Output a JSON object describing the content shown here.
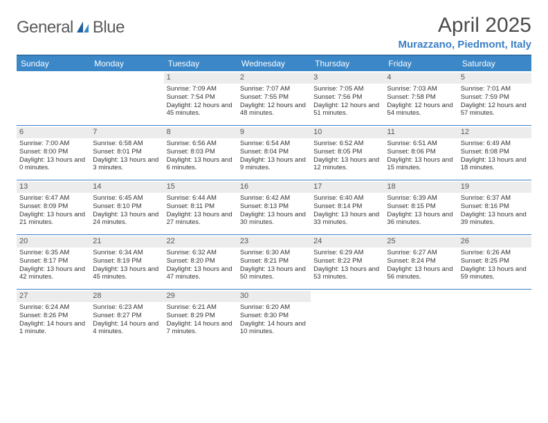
{
  "logo": {
    "text1": "General",
    "text2": "Blue"
  },
  "title": "April 2025",
  "location": "Murazzano, Piedmont, Italy",
  "colors": {
    "header_bg": "#3b87c8",
    "header_border_top": "#2f6fa3",
    "week_divider": "#3b7fc4",
    "daynum_bg": "#ececec",
    "text": "#333333",
    "logo_gray": "#5a5a5a",
    "logo_blue": "#3b7fc4"
  },
  "fonts": {
    "body_pt": 9.5,
    "header_pt": 12,
    "title_pt": 30,
    "location_pt": 15
  },
  "day_headers": [
    "Sunday",
    "Monday",
    "Tuesday",
    "Wednesday",
    "Thursday",
    "Friday",
    "Saturday"
  ],
  "weeks": [
    [
      null,
      null,
      {
        "n": "1",
        "sr": "Sunrise: 7:09 AM",
        "ss": "Sunset: 7:54 PM",
        "dl": "Daylight: 12 hours and 45 minutes."
      },
      {
        "n": "2",
        "sr": "Sunrise: 7:07 AM",
        "ss": "Sunset: 7:55 PM",
        "dl": "Daylight: 12 hours and 48 minutes."
      },
      {
        "n": "3",
        "sr": "Sunrise: 7:05 AM",
        "ss": "Sunset: 7:56 PM",
        "dl": "Daylight: 12 hours and 51 minutes."
      },
      {
        "n": "4",
        "sr": "Sunrise: 7:03 AM",
        "ss": "Sunset: 7:58 PM",
        "dl": "Daylight: 12 hours and 54 minutes."
      },
      {
        "n": "5",
        "sr": "Sunrise: 7:01 AM",
        "ss": "Sunset: 7:59 PM",
        "dl": "Daylight: 12 hours and 57 minutes."
      }
    ],
    [
      {
        "n": "6",
        "sr": "Sunrise: 7:00 AM",
        "ss": "Sunset: 8:00 PM",
        "dl": "Daylight: 13 hours and 0 minutes."
      },
      {
        "n": "7",
        "sr": "Sunrise: 6:58 AM",
        "ss": "Sunset: 8:01 PM",
        "dl": "Daylight: 13 hours and 3 minutes."
      },
      {
        "n": "8",
        "sr": "Sunrise: 6:56 AM",
        "ss": "Sunset: 8:03 PM",
        "dl": "Daylight: 13 hours and 6 minutes."
      },
      {
        "n": "9",
        "sr": "Sunrise: 6:54 AM",
        "ss": "Sunset: 8:04 PM",
        "dl": "Daylight: 13 hours and 9 minutes."
      },
      {
        "n": "10",
        "sr": "Sunrise: 6:52 AM",
        "ss": "Sunset: 8:05 PM",
        "dl": "Daylight: 13 hours and 12 minutes."
      },
      {
        "n": "11",
        "sr": "Sunrise: 6:51 AM",
        "ss": "Sunset: 8:06 PM",
        "dl": "Daylight: 13 hours and 15 minutes."
      },
      {
        "n": "12",
        "sr": "Sunrise: 6:49 AM",
        "ss": "Sunset: 8:08 PM",
        "dl": "Daylight: 13 hours and 18 minutes."
      }
    ],
    [
      {
        "n": "13",
        "sr": "Sunrise: 6:47 AM",
        "ss": "Sunset: 8:09 PM",
        "dl": "Daylight: 13 hours and 21 minutes."
      },
      {
        "n": "14",
        "sr": "Sunrise: 6:45 AM",
        "ss": "Sunset: 8:10 PM",
        "dl": "Daylight: 13 hours and 24 minutes."
      },
      {
        "n": "15",
        "sr": "Sunrise: 6:44 AM",
        "ss": "Sunset: 8:11 PM",
        "dl": "Daylight: 13 hours and 27 minutes."
      },
      {
        "n": "16",
        "sr": "Sunrise: 6:42 AM",
        "ss": "Sunset: 8:13 PM",
        "dl": "Daylight: 13 hours and 30 minutes."
      },
      {
        "n": "17",
        "sr": "Sunrise: 6:40 AM",
        "ss": "Sunset: 8:14 PM",
        "dl": "Daylight: 13 hours and 33 minutes."
      },
      {
        "n": "18",
        "sr": "Sunrise: 6:39 AM",
        "ss": "Sunset: 8:15 PM",
        "dl": "Daylight: 13 hours and 36 minutes."
      },
      {
        "n": "19",
        "sr": "Sunrise: 6:37 AM",
        "ss": "Sunset: 8:16 PM",
        "dl": "Daylight: 13 hours and 39 minutes."
      }
    ],
    [
      {
        "n": "20",
        "sr": "Sunrise: 6:35 AM",
        "ss": "Sunset: 8:17 PM",
        "dl": "Daylight: 13 hours and 42 minutes."
      },
      {
        "n": "21",
        "sr": "Sunrise: 6:34 AM",
        "ss": "Sunset: 8:19 PM",
        "dl": "Daylight: 13 hours and 45 minutes."
      },
      {
        "n": "22",
        "sr": "Sunrise: 6:32 AM",
        "ss": "Sunset: 8:20 PM",
        "dl": "Daylight: 13 hours and 47 minutes."
      },
      {
        "n": "23",
        "sr": "Sunrise: 6:30 AM",
        "ss": "Sunset: 8:21 PM",
        "dl": "Daylight: 13 hours and 50 minutes."
      },
      {
        "n": "24",
        "sr": "Sunrise: 6:29 AM",
        "ss": "Sunset: 8:22 PM",
        "dl": "Daylight: 13 hours and 53 minutes."
      },
      {
        "n": "25",
        "sr": "Sunrise: 6:27 AM",
        "ss": "Sunset: 8:24 PM",
        "dl": "Daylight: 13 hours and 56 minutes."
      },
      {
        "n": "26",
        "sr": "Sunrise: 6:26 AM",
        "ss": "Sunset: 8:25 PM",
        "dl": "Daylight: 13 hours and 59 minutes."
      }
    ],
    [
      {
        "n": "27",
        "sr": "Sunrise: 6:24 AM",
        "ss": "Sunset: 8:26 PM",
        "dl": "Daylight: 14 hours and 1 minute."
      },
      {
        "n": "28",
        "sr": "Sunrise: 6:23 AM",
        "ss": "Sunset: 8:27 PM",
        "dl": "Daylight: 14 hours and 4 minutes."
      },
      {
        "n": "29",
        "sr": "Sunrise: 6:21 AM",
        "ss": "Sunset: 8:29 PM",
        "dl": "Daylight: 14 hours and 7 minutes."
      },
      {
        "n": "30",
        "sr": "Sunrise: 6:20 AM",
        "ss": "Sunset: 8:30 PM",
        "dl": "Daylight: 14 hours and 10 minutes."
      },
      null,
      null,
      null
    ]
  ]
}
